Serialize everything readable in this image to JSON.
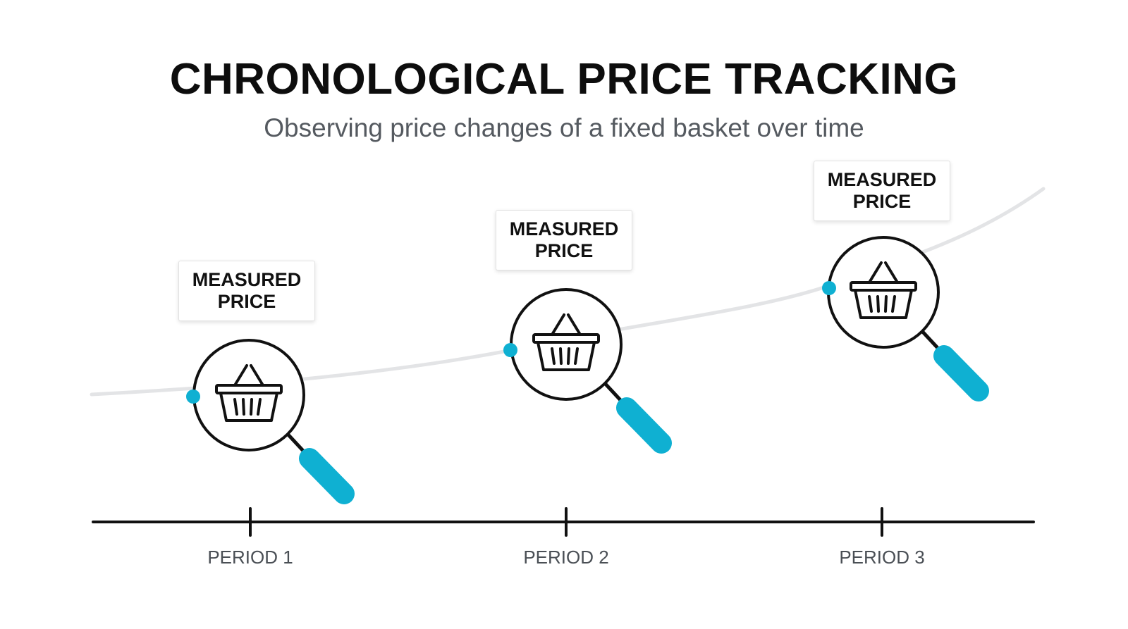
{
  "title": "CHRONOLOGICAL PRICE TRACKING",
  "subtitle": "Observing price changes of a fixed basket over time",
  "colors": {
    "accent": "#0fb0d2",
    "trend_line": "#e3e4e6",
    "outline": "#111111"
  },
  "observations": [
    {
      "period": "PERIOD 1",
      "label": "MEASURED\nPRICE",
      "icon": "basket-icon",
      "tool": "magnifier-icon"
    },
    {
      "period": "PERIOD 2",
      "label": "MEASURED\nPRICE",
      "icon": "basket-icon",
      "tool": "magnifier-icon"
    },
    {
      "period": "PERIOD 3",
      "label": "MEASURED\nPRICE",
      "icon": "basket-icon",
      "tool": "magnifier-icon"
    }
  ]
}
